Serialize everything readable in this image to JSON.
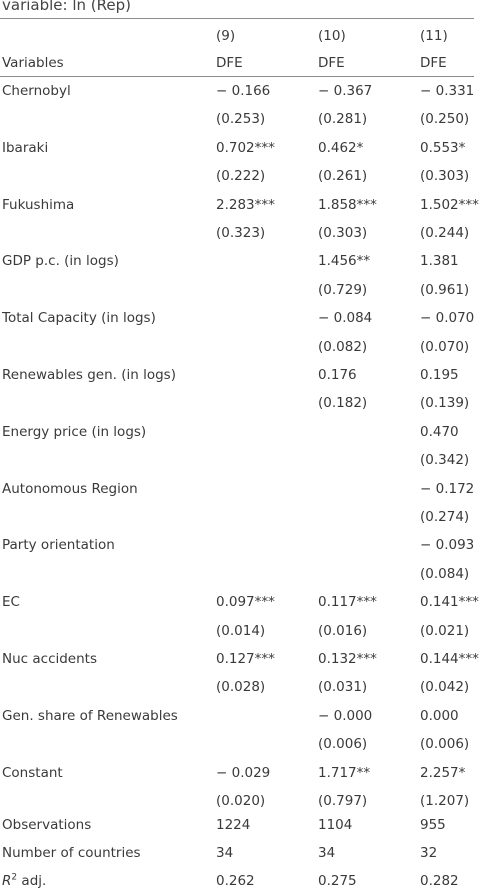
{
  "caption": "variable: ln (Rep)",
  "header": {
    "col_numbers": [
      "(9)",
      "(10)",
      "(11)"
    ],
    "variables_label": "Variables",
    "estimators": [
      "DFE",
      "DFE",
      "DFE"
    ]
  },
  "rows": [
    {
      "label": "Chernobyl",
      "coef": [
        "− 0.166",
        "− 0.367",
        "− 0.331"
      ],
      "se": [
        "(0.253)",
        "(0.281)",
        "(0.250)"
      ]
    },
    {
      "label": "Ibaraki",
      "coef": [
        "0.702***",
        "0.462*",
        "0.553*"
      ],
      "se": [
        "(0.222)",
        "(0.261)",
        "(0.303)"
      ]
    },
    {
      "label": "Fukushima",
      "coef": [
        "2.283***",
        "1.858***",
        "1.502***"
      ],
      "se": [
        "(0.323)",
        "(0.303)",
        "(0.244)"
      ]
    },
    {
      "label": "GDP p.c. (in logs)",
      "coef": [
        "",
        "1.456**",
        "1.381"
      ],
      "se": [
        "",
        "(0.729)",
        "(0.961)"
      ]
    },
    {
      "label": "Total Capacity (in logs)",
      "coef": [
        "",
        "− 0.084",
        "− 0.070"
      ],
      "se": [
        "",
        "(0.082)",
        "(0.070)"
      ]
    },
    {
      "label": "Renewables gen. (in logs)",
      "coef": [
        "",
        "0.176",
        "0.195"
      ],
      "se": [
        "",
        "(0.182)",
        "(0.139)"
      ]
    },
    {
      "label": "Energy price (in logs)",
      "coef": [
        "",
        "",
        "0.470"
      ],
      "se": [
        "",
        "",
        "(0.342)"
      ]
    },
    {
      "label": "Autonomous Region",
      "coef": [
        "",
        "",
        "− 0.172"
      ],
      "se": [
        "",
        "",
        "(0.274)"
      ]
    },
    {
      "label": "Party orientation",
      "coef": [
        "",
        "",
        "− 0.093"
      ],
      "se": [
        "",
        "",
        "(0.084)"
      ]
    },
    {
      "label": "EC",
      "coef": [
        "0.097***",
        "0.117***",
        "0.141***"
      ],
      "se": [
        "(0.014)",
        "(0.016)",
        "(0.021)"
      ]
    },
    {
      "label": "Nuc accidents",
      "coef": [
        "0.127***",
        "0.132***",
        "0.144***"
      ],
      "se": [
        "(0.028)",
        "(0.031)",
        "(0.042)"
      ]
    },
    {
      "label": "Gen. share of Renewables",
      "coef": [
        "",
        "− 0.000",
        "0.000"
      ],
      "se": [
        "",
        "(0.006)",
        "(0.006)"
      ]
    },
    {
      "label": "Constant",
      "coef": [
        "− 0.029",
        "1.717**",
        "2.257*"
      ],
      "se": [
        "(0.020)",
        "(0.797)",
        "(1.207)"
      ]
    }
  ],
  "footer": [
    {
      "label": "Observations",
      "values": [
        "1224",
        "1104",
        "955"
      ]
    },
    {
      "label": "Number of countries",
      "values": [
        "34",
        "34",
        "32"
      ]
    },
    {
      "label_main": "R",
      "label_sup": "2",
      "label_rest": " adj.",
      "values": [
        "0.262",
        "0.275",
        "0.282"
      ]
    }
  ]
}
